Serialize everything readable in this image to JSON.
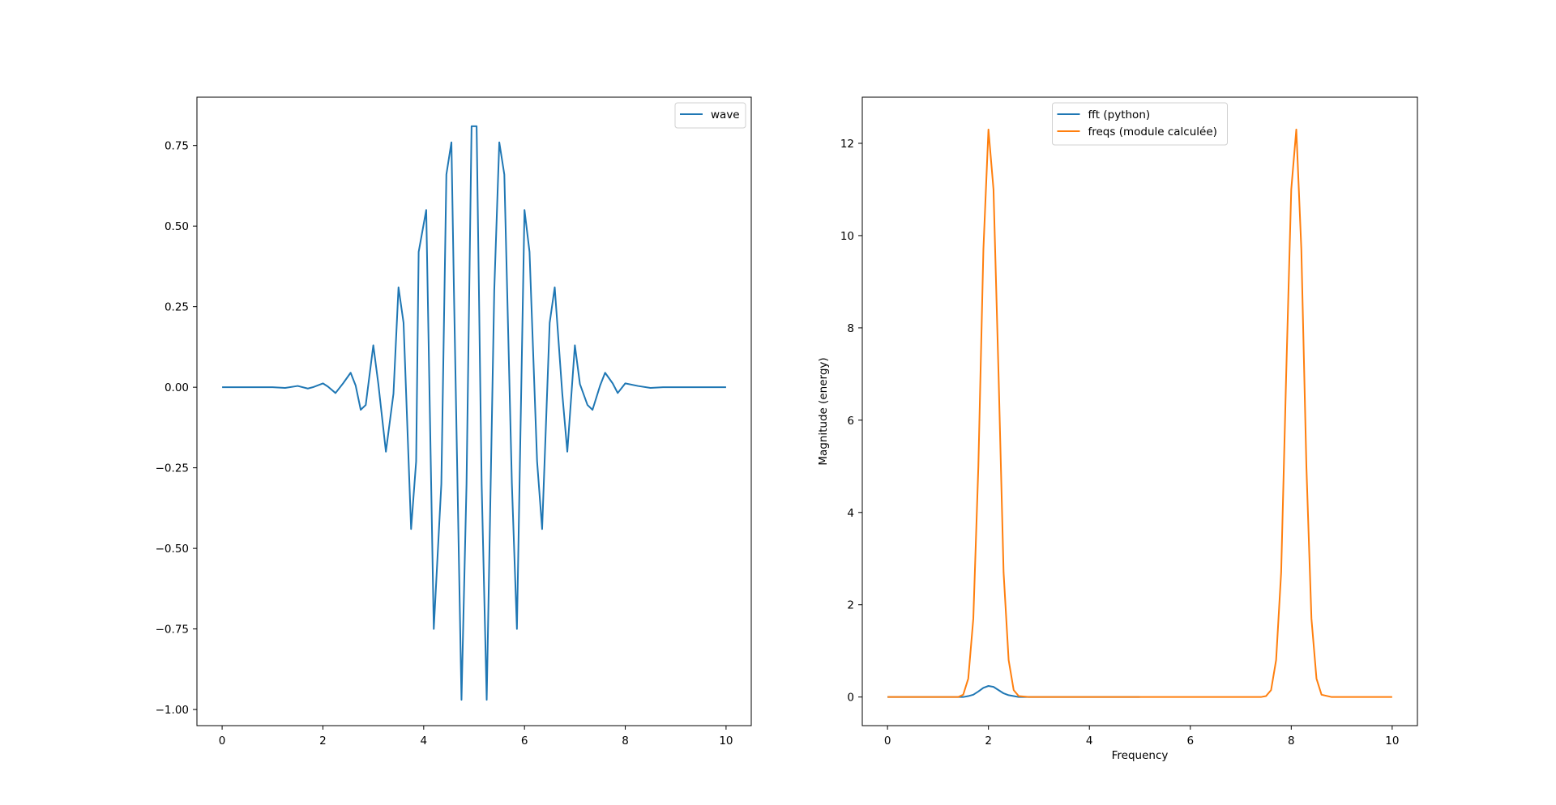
{
  "chart_data": [
    {
      "type": "line",
      "title": "",
      "xlabel": "",
      "ylabel": "",
      "xlim": [
        -0.5,
        10.5
      ],
      "ylim": [
        -1.05,
        0.9
      ],
      "xticks": [
        0,
        2,
        4,
        6,
        8,
        10
      ],
      "xtick_labels": [
        "0",
        "2",
        "4",
        "6",
        "8",
        "10"
      ],
      "yticks": [
        -1.0,
        -0.75,
        -0.5,
        -0.25,
        0.0,
        0.25,
        0.5,
        0.75
      ],
      "ytick_labels": [
        "−1.00",
        "−0.75",
        "−0.50",
        "−0.25",
        "0.00",
        "0.25",
        "0.50",
        "0.75"
      ],
      "grid": false,
      "legend_position": "top-right",
      "series": [
        {
          "name": "wave",
          "color": "#1f77b4",
          "x": [
            0,
            0.25,
            0.5,
            0.75,
            1,
            1.25,
            1.5,
            1.7,
            1.8,
            2.0,
            2.1,
            2.25,
            2.4,
            2.55,
            2.65,
            2.75,
            2.85,
            3.0,
            3.1,
            3.25,
            3.4,
            3.5,
            3.6,
            3.75,
            3.85,
            3.9,
            4.05,
            4.2,
            4.35,
            4.45,
            4.55,
            4.6,
            4.75,
            4.85,
            4.95,
            5.05,
            5.15,
            5.25,
            5.4,
            5.5,
            5.6,
            5.75,
            5.85,
            6.0,
            6.1,
            6.25,
            6.35,
            6.5,
            6.6,
            6.75,
            6.85,
            7.0,
            7.1,
            7.25,
            7.35,
            7.5,
            7.6,
            7.75,
            7.85,
            8.0,
            8.25,
            8.5,
            8.75,
            9,
            9.5,
            10
          ],
          "values": [
            0,
            0,
            0,
            0,
            0,
            -0.002,
            0.004,
            -0.004,
            0,
            0.012,
            0.002,
            -0.018,
            0.012,
            0.045,
            0.005,
            -0.07,
            -0.055,
            0.13,
            0.01,
            -0.2,
            -0.02,
            0.31,
            0.2,
            -0.44,
            -0.23,
            0.42,
            0.55,
            -0.75,
            -0.3,
            0.66,
            0.76,
            0.3,
            -0.97,
            -0.3,
            0.81,
            0.81,
            -0.3,
            -0.97,
            0.3,
            0.76,
            0.66,
            -0.3,
            -0.75,
            0.55,
            0.42,
            -0.23,
            -0.44,
            0.2,
            0.31,
            -0.02,
            -0.2,
            0.13,
            0.01,
            -0.055,
            -0.07,
            0.005,
            0.045,
            0.012,
            -0.018,
            0.012,
            0.004,
            -0.002,
            0,
            0,
            0,
            0
          ]
        }
      ]
    },
    {
      "type": "line",
      "title": "",
      "xlabel": "Frequency",
      "ylabel": "Magnitude (energy)",
      "xlim": [
        -0.5,
        10.5
      ],
      "ylim": [
        -0.62,
        13.0
      ],
      "xticks": [
        0,
        2,
        4,
        6,
        8,
        10
      ],
      "xtick_labels": [
        "0",
        "2",
        "4",
        "6",
        "8",
        "10"
      ],
      "yticks": [
        0,
        2,
        4,
        6,
        8,
        10,
        12
      ],
      "ytick_labels": [
        "0",
        "2",
        "4",
        "6",
        "8",
        "10",
        "12"
      ],
      "grid": false,
      "legend_position": "top-center",
      "series": [
        {
          "name": "fft (python)",
          "color": "#1f77b4",
          "x": [
            0,
            1.5,
            1.6,
            1.7,
            1.8,
            1.9,
            2.0,
            2.1,
            2.2,
            2.3,
            2.4,
            2.5,
            2.6,
            2.7,
            3,
            4,
            5
          ],
          "values": [
            0,
            0,
            0.02,
            0.05,
            0.12,
            0.2,
            0.24,
            0.22,
            0.15,
            0.08,
            0.04,
            0.02,
            0,
            0,
            0,
            0,
            0
          ]
        },
        {
          "name": "freqs (module calculée)",
          "color": "#ff7f0e",
          "x": [
            0,
            1.4,
            1.5,
            1.6,
            1.7,
            1.8,
            1.9,
            2.0,
            2.1,
            2.2,
            2.3,
            2.4,
            2.5,
            2.6,
            2.8,
            7.4,
            7.5,
            7.6,
            7.7,
            7.8,
            7.9,
            8.0,
            8.1,
            8.2,
            8.3,
            8.4,
            8.5,
            8.6,
            8.8,
            10
          ],
          "values": [
            0,
            0,
            0.05,
            0.4,
            1.7,
            5.0,
            9.7,
            12.3,
            11.0,
            7.0,
            2.7,
            0.8,
            0.15,
            0.02,
            0,
            0,
            0.02,
            0.15,
            0.8,
            2.7,
            7.0,
            11.0,
            12.3,
            9.7,
            5.0,
            1.7,
            0.4,
            0.05,
            0,
            0
          ]
        }
      ]
    }
  ]
}
